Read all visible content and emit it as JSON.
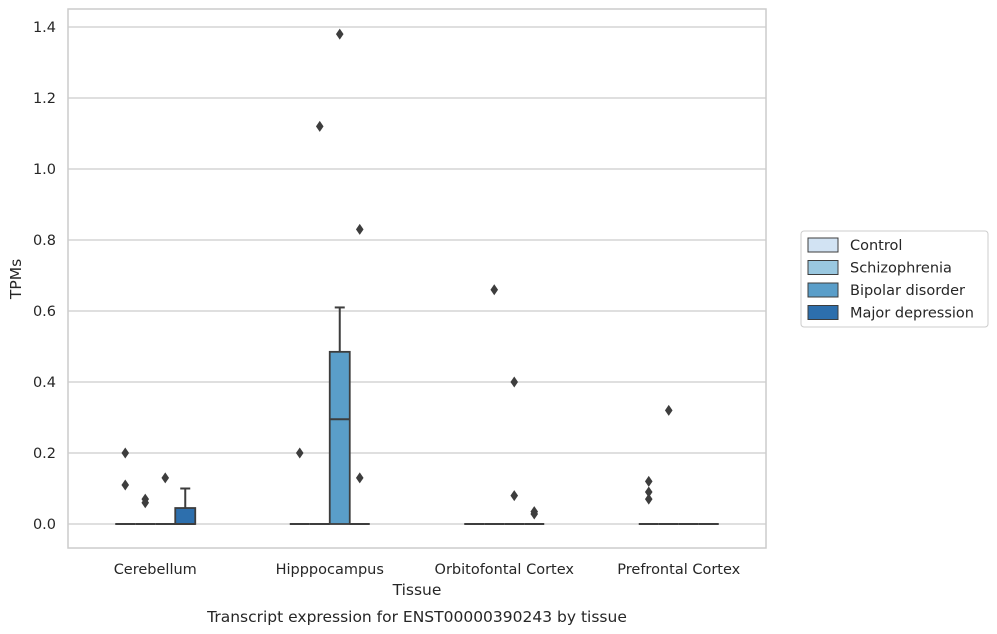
{
  "chart_data": {
    "type": "box",
    "xlabel": "Tissue",
    "ylabel": "TPMs",
    "caption": "Transcript expression for ENST00000390243 by tissue",
    "ylim": [
      -0.068,
      1.45
    ],
    "yticks": [
      "0.0",
      "0.2",
      "0.4",
      "0.6",
      "0.8",
      "1.0",
      "1.2",
      "1.4"
    ],
    "grid": "horizontal",
    "legend_position": "right",
    "categories": [
      "Cerebellum",
      "Hipppocampus",
      "Orbitofontal Cortex",
      "Prefrontal Cortex"
    ],
    "series": [
      {
        "name": "Control",
        "color": "#d2e3f3",
        "boxes": [
          {
            "q1": 0,
            "median": 0,
            "q3": 0,
            "whisker_low": 0,
            "whisker_high": 0,
            "outliers": [
              0.2,
              0.11
            ]
          },
          {
            "q1": 0,
            "median": 0,
            "q3": 0,
            "whisker_low": 0,
            "whisker_high": 0,
            "outliers": [
              0.2
            ]
          },
          {
            "q1": 0,
            "median": 0,
            "q3": 0,
            "whisker_low": 0,
            "whisker_high": 0,
            "outliers": []
          },
          {
            "q1": 0,
            "median": 0,
            "q3": 0,
            "whisker_low": 0,
            "whisker_high": 0,
            "outliers": [
              0.12,
              0.09,
              0.07
            ]
          }
        ]
      },
      {
        "name": "Schizophrenia",
        "color": "#9ac8e0",
        "boxes": [
          {
            "q1": 0,
            "median": 0,
            "q3": 0,
            "whisker_low": 0,
            "whisker_high": 0,
            "outliers": [
              0.07,
              0.06
            ]
          },
          {
            "q1": 0,
            "median": 0,
            "q3": 0,
            "whisker_low": 0,
            "whisker_high": 0,
            "outliers": [
              1.12
            ]
          },
          {
            "q1": 0,
            "median": 0,
            "q3": 0,
            "whisker_low": 0,
            "whisker_high": 0,
            "outliers": [
              0.66
            ]
          },
          {
            "q1": 0,
            "median": 0,
            "q3": 0,
            "whisker_low": 0,
            "whisker_high": 0,
            "outliers": [
              0.32
            ]
          }
        ]
      },
      {
        "name": "Bipolar disorder",
        "color": "#5a9ec9",
        "boxes": [
          {
            "q1": 0,
            "median": 0,
            "q3": 0,
            "whisker_low": 0,
            "whisker_high": 0,
            "outliers": [
              0.13
            ]
          },
          {
            "q1": 0,
            "median": 0.295,
            "q3": 0.485,
            "whisker_low": 0,
            "whisker_high": 0.61,
            "outliers": [
              1.38
            ]
          },
          {
            "q1": 0,
            "median": 0,
            "q3": 0,
            "whisker_low": 0,
            "whisker_high": 0,
            "outliers": [
              0.4,
              0.08
            ]
          },
          {
            "q1": 0,
            "median": 0,
            "q3": 0,
            "whisker_low": 0,
            "whisker_high": 0,
            "outliers": []
          }
        ]
      },
      {
        "name": "Major depression",
        "color": "#2d6fad",
        "boxes": [
          {
            "q1": 0,
            "median": 0,
            "q3": 0.045,
            "whisker_low": 0,
            "whisker_high": 0.1,
            "outliers": []
          },
          {
            "q1": 0,
            "median": 0,
            "q3": 0,
            "whisker_low": 0,
            "whisker_high": 0,
            "outliers": [
              0.83,
              0.13
            ]
          },
          {
            "q1": 0,
            "median": 0,
            "q3": 0,
            "whisker_low": 0,
            "whisker_high": 0,
            "outliers": [
              0.035,
              0.028
            ]
          },
          {
            "q1": 0,
            "median": 0,
            "q3": 0,
            "whisker_low": 0,
            "whisker_high": 0,
            "outliers": []
          }
        ]
      }
    ]
  }
}
